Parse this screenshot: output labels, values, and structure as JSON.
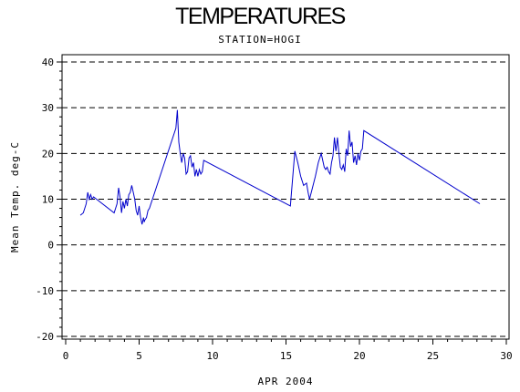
{
  "chart_data": {
    "type": "line",
    "title": "TEMPERATURES",
    "subtitle": "STATION=HOGI",
    "xlabel": "APR 2004",
    "ylabel": "Mean Temp. deg-C",
    "xlim": [
      0,
      30
    ],
    "ylim": [
      -20,
      40
    ],
    "x_ticks": [
      0,
      5,
      10,
      15,
      20,
      25,
      30
    ],
    "y_ticks": [
      -20,
      -10,
      0,
      10,
      20,
      30,
      40
    ],
    "grid": "dashed horizontal at major y ticks",
    "series": [
      {
        "color": "#0000cc",
        "x": [
          1.0,
          1.2,
          1.4,
          1.5,
          1.6,
          1.7,
          1.8,
          1.9,
          2.1,
          3.3,
          3.5,
          3.6,
          3.7,
          3.8,
          3.9,
          4.0,
          4.1,
          4.2,
          4.3,
          4.4,
          4.5,
          4.6,
          4.7,
          4.8,
          4.9,
          5.0,
          5.1,
          5.2,
          5.3,
          5.35,
          5.4,
          5.5,
          5.6,
          5.7,
          7.5,
          7.6,
          7.7,
          7.8,
          7.9,
          8.0,
          8.1,
          8.2,
          8.3,
          8.4,
          8.5,
          8.6,
          8.7,
          8.8,
          8.9,
          9.0,
          9.1,
          9.2,
          9.3,
          9.4,
          15.3,
          15.6,
          15.8,
          16.0,
          16.2,
          16.4,
          16.5,
          16.6,
          16.8,
          17.0,
          17.2,
          17.4,
          17.6,
          17.7,
          17.8,
          17.9,
          18.0,
          18.1,
          18.2,
          18.3,
          18.4,
          18.5,
          18.6,
          18.7,
          18.8,
          18.9,
          19.0,
          19.1,
          19.2,
          19.3,
          19.4,
          19.5,
          19.6,
          19.7,
          19.8,
          19.9,
          20.0,
          20.1,
          20.2,
          20.3,
          28.2
        ],
        "values": [
          6.5,
          7.0,
          9.0,
          11.5,
          10.0,
          11.0,
          10.0,
          10.5,
          10.0,
          7.0,
          9.0,
          12.5,
          10.5,
          7.0,
          9.5,
          8.0,
          10.0,
          8.5,
          11.0,
          11.5,
          13.0,
          11.5,
          10.0,
          7.5,
          6.5,
          8.5,
          6.0,
          4.5,
          6.0,
          5.0,
          5.5,
          6.0,
          7.5,
          8.0,
          25.5,
          29.5,
          22.5,
          20.0,
          18.0,
          20.0,
          19.0,
          15.5,
          16.0,
          19.0,
          19.5,
          17.0,
          18.0,
          15.0,
          16.5,
          15.0,
          16.5,
          15.5,
          16.0,
          18.5,
          8.5,
          20.5,
          18.0,
          15.0,
          13.0,
          13.5,
          11.5,
          10.0,
          12.5,
          15.0,
          18.0,
          20.0,
          17.0,
          16.5,
          17.0,
          16.0,
          15.5,
          18.0,
          19.5,
          23.5,
          20.5,
          23.5,
          20.0,
          17.0,
          16.5,
          17.5,
          16.0,
          21.0,
          19.5,
          25.0,
          21.5,
          22.5,
          18.0,
          19.5,
          17.5,
          20.0,
          18.5,
          20.5,
          21.0,
          25.0,
          9.0
        ]
      }
    ]
  }
}
